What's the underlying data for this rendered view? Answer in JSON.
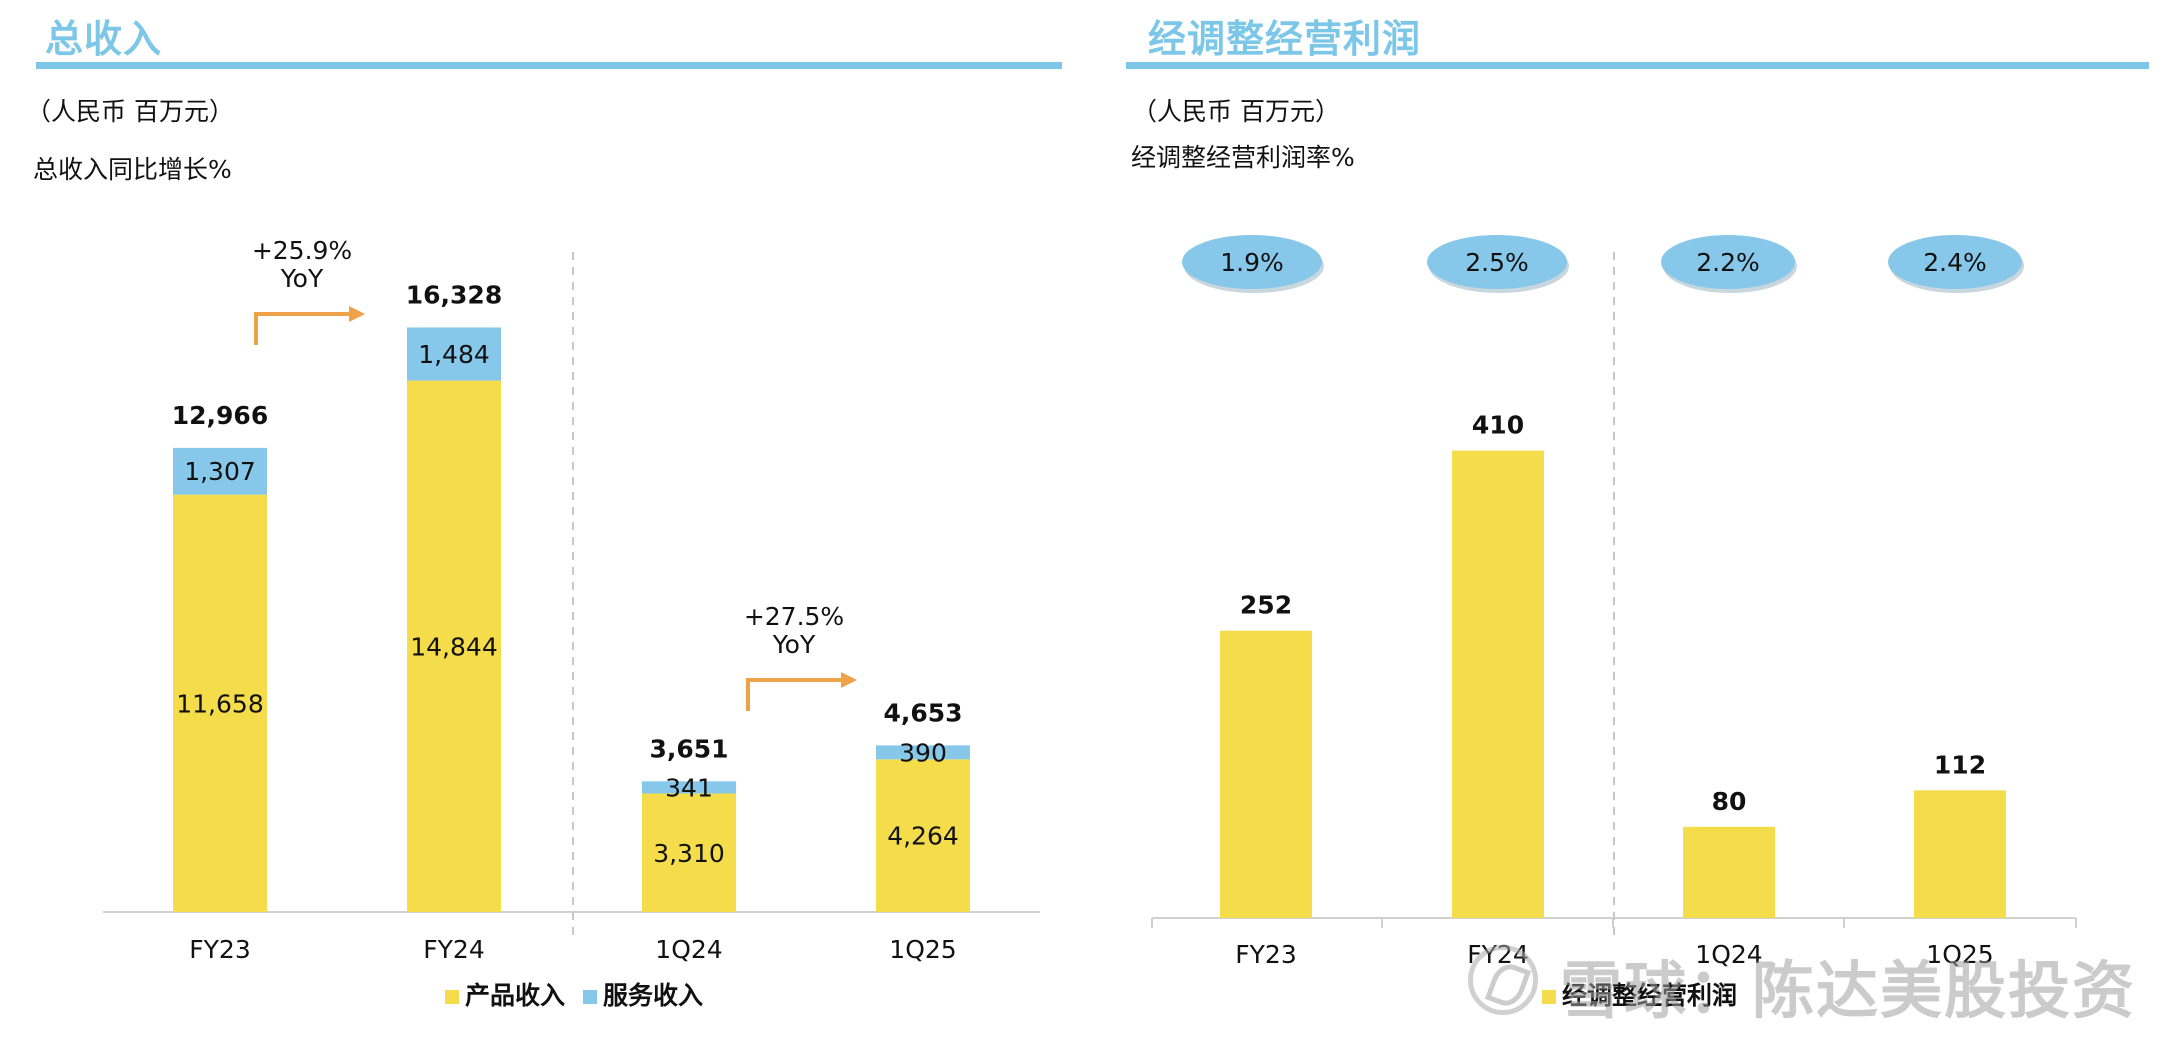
{
  "colors": {
    "product": "#f5dc4a",
    "service": "#86c7ea",
    "arrow": "#f0a24a",
    "accent": "#7cc7e8"
  },
  "watermark": {
    "text": "雪球：陈达美股投资"
  },
  "chart_data": [
    {
      "type": "bar",
      "title": "总收入",
      "subtitle": "（人民币 百万元）",
      "note": "总收入同比增长%",
      "categories": [
        "FY23",
        "FY24",
        "1Q24",
        "1Q25"
      ],
      "series": [
        {
          "name": "产品收入",
          "values": [
            11658,
            14844,
            3310,
            4264
          ]
        },
        {
          "name": "服务收入",
          "values": [
            1307,
            1484,
            341,
            390
          ]
        }
      ],
      "labels": {
        "product": [
          "11,658",
          "14,844",
          "3,310",
          "4,264"
        ],
        "service": [
          "1,307",
          "1,484",
          "341",
          "390"
        ],
        "totals": [
          "12,966",
          "16,328",
          "3,651",
          "4,653"
        ]
      },
      "totals": [
        12966,
        16328,
        3651,
        4653
      ],
      "annotations": [
        {
          "from": "FY23",
          "to": "FY24",
          "line1": "+25.9%",
          "line2": "YoY"
        },
        {
          "from": "1Q24",
          "to": "1Q25",
          "line1": "+27.5%",
          "line2": "YoY"
        }
      ],
      "legend": "bottom",
      "grid": false
    },
    {
      "type": "bar",
      "title": "经调整经营利润",
      "subtitle": "（人民币 百万元）",
      "note": "经调整经营利润率%",
      "categories": [
        "FY23",
        "FY24",
        "1Q24",
        "1Q25"
      ],
      "series": [
        {
          "name": "经调整经营利润",
          "values": [
            252,
            410,
            80,
            112
          ]
        }
      ],
      "labels": {
        "values": [
          "252",
          "410",
          "80",
          "112"
        ]
      },
      "margins": [
        "1.9%",
        "2.5%",
        "2.2%",
        "2.4%"
      ],
      "legend": "bottom",
      "grid": false
    }
  ]
}
